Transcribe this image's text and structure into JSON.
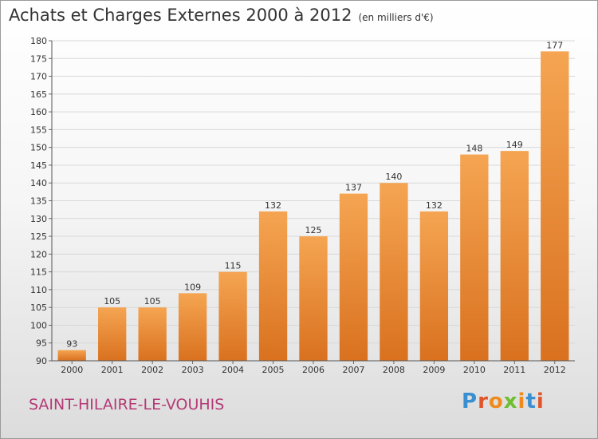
{
  "header": {
    "title": "Achats et Charges Externes 2000 à 2012",
    "unit": "(en milliers d'€)"
  },
  "footer": {
    "place": "SAINT-HILAIRE-LE-VOUHIS",
    "logo": "Proxiti"
  },
  "colors": {
    "bar_top": "#f5a552",
    "bar_bottom": "#d9711f",
    "title_text": "#333333",
    "place_text": "#b43a75",
    "logo_letters": [
      "#3a8fd1",
      "#e0562a",
      "#ef8a1c",
      "#6cbf2e",
      "#ef8a1c",
      "#3a8fd1",
      "#e0562a"
    ]
  },
  "chart_data": {
    "type": "bar",
    "title": "Achats et Charges Externes 2000 à 2012",
    "subtitle": "(en milliers d'€)",
    "xlabel": "",
    "ylabel": "",
    "categories": [
      "2000",
      "2001",
      "2002",
      "2003",
      "2004",
      "2005",
      "2006",
      "2007",
      "2008",
      "2009",
      "2010",
      "2011",
      "2012"
    ],
    "values": [
      93,
      105,
      105,
      109,
      115,
      132,
      125,
      137,
      140,
      132,
      148,
      149,
      177
    ],
    "data_labels": [
      "93",
      "105",
      "105",
      "109",
      "115",
      "132",
      "125",
      "137",
      "140",
      "132",
      "148",
      "149",
      "177"
    ],
    "ylim": [
      90,
      180
    ],
    "yticks": [
      90,
      95,
      100,
      105,
      110,
      115,
      120,
      125,
      130,
      135,
      140,
      145,
      150,
      155,
      160,
      165,
      170,
      175,
      180
    ],
    "grid": true,
    "legend": "none"
  }
}
